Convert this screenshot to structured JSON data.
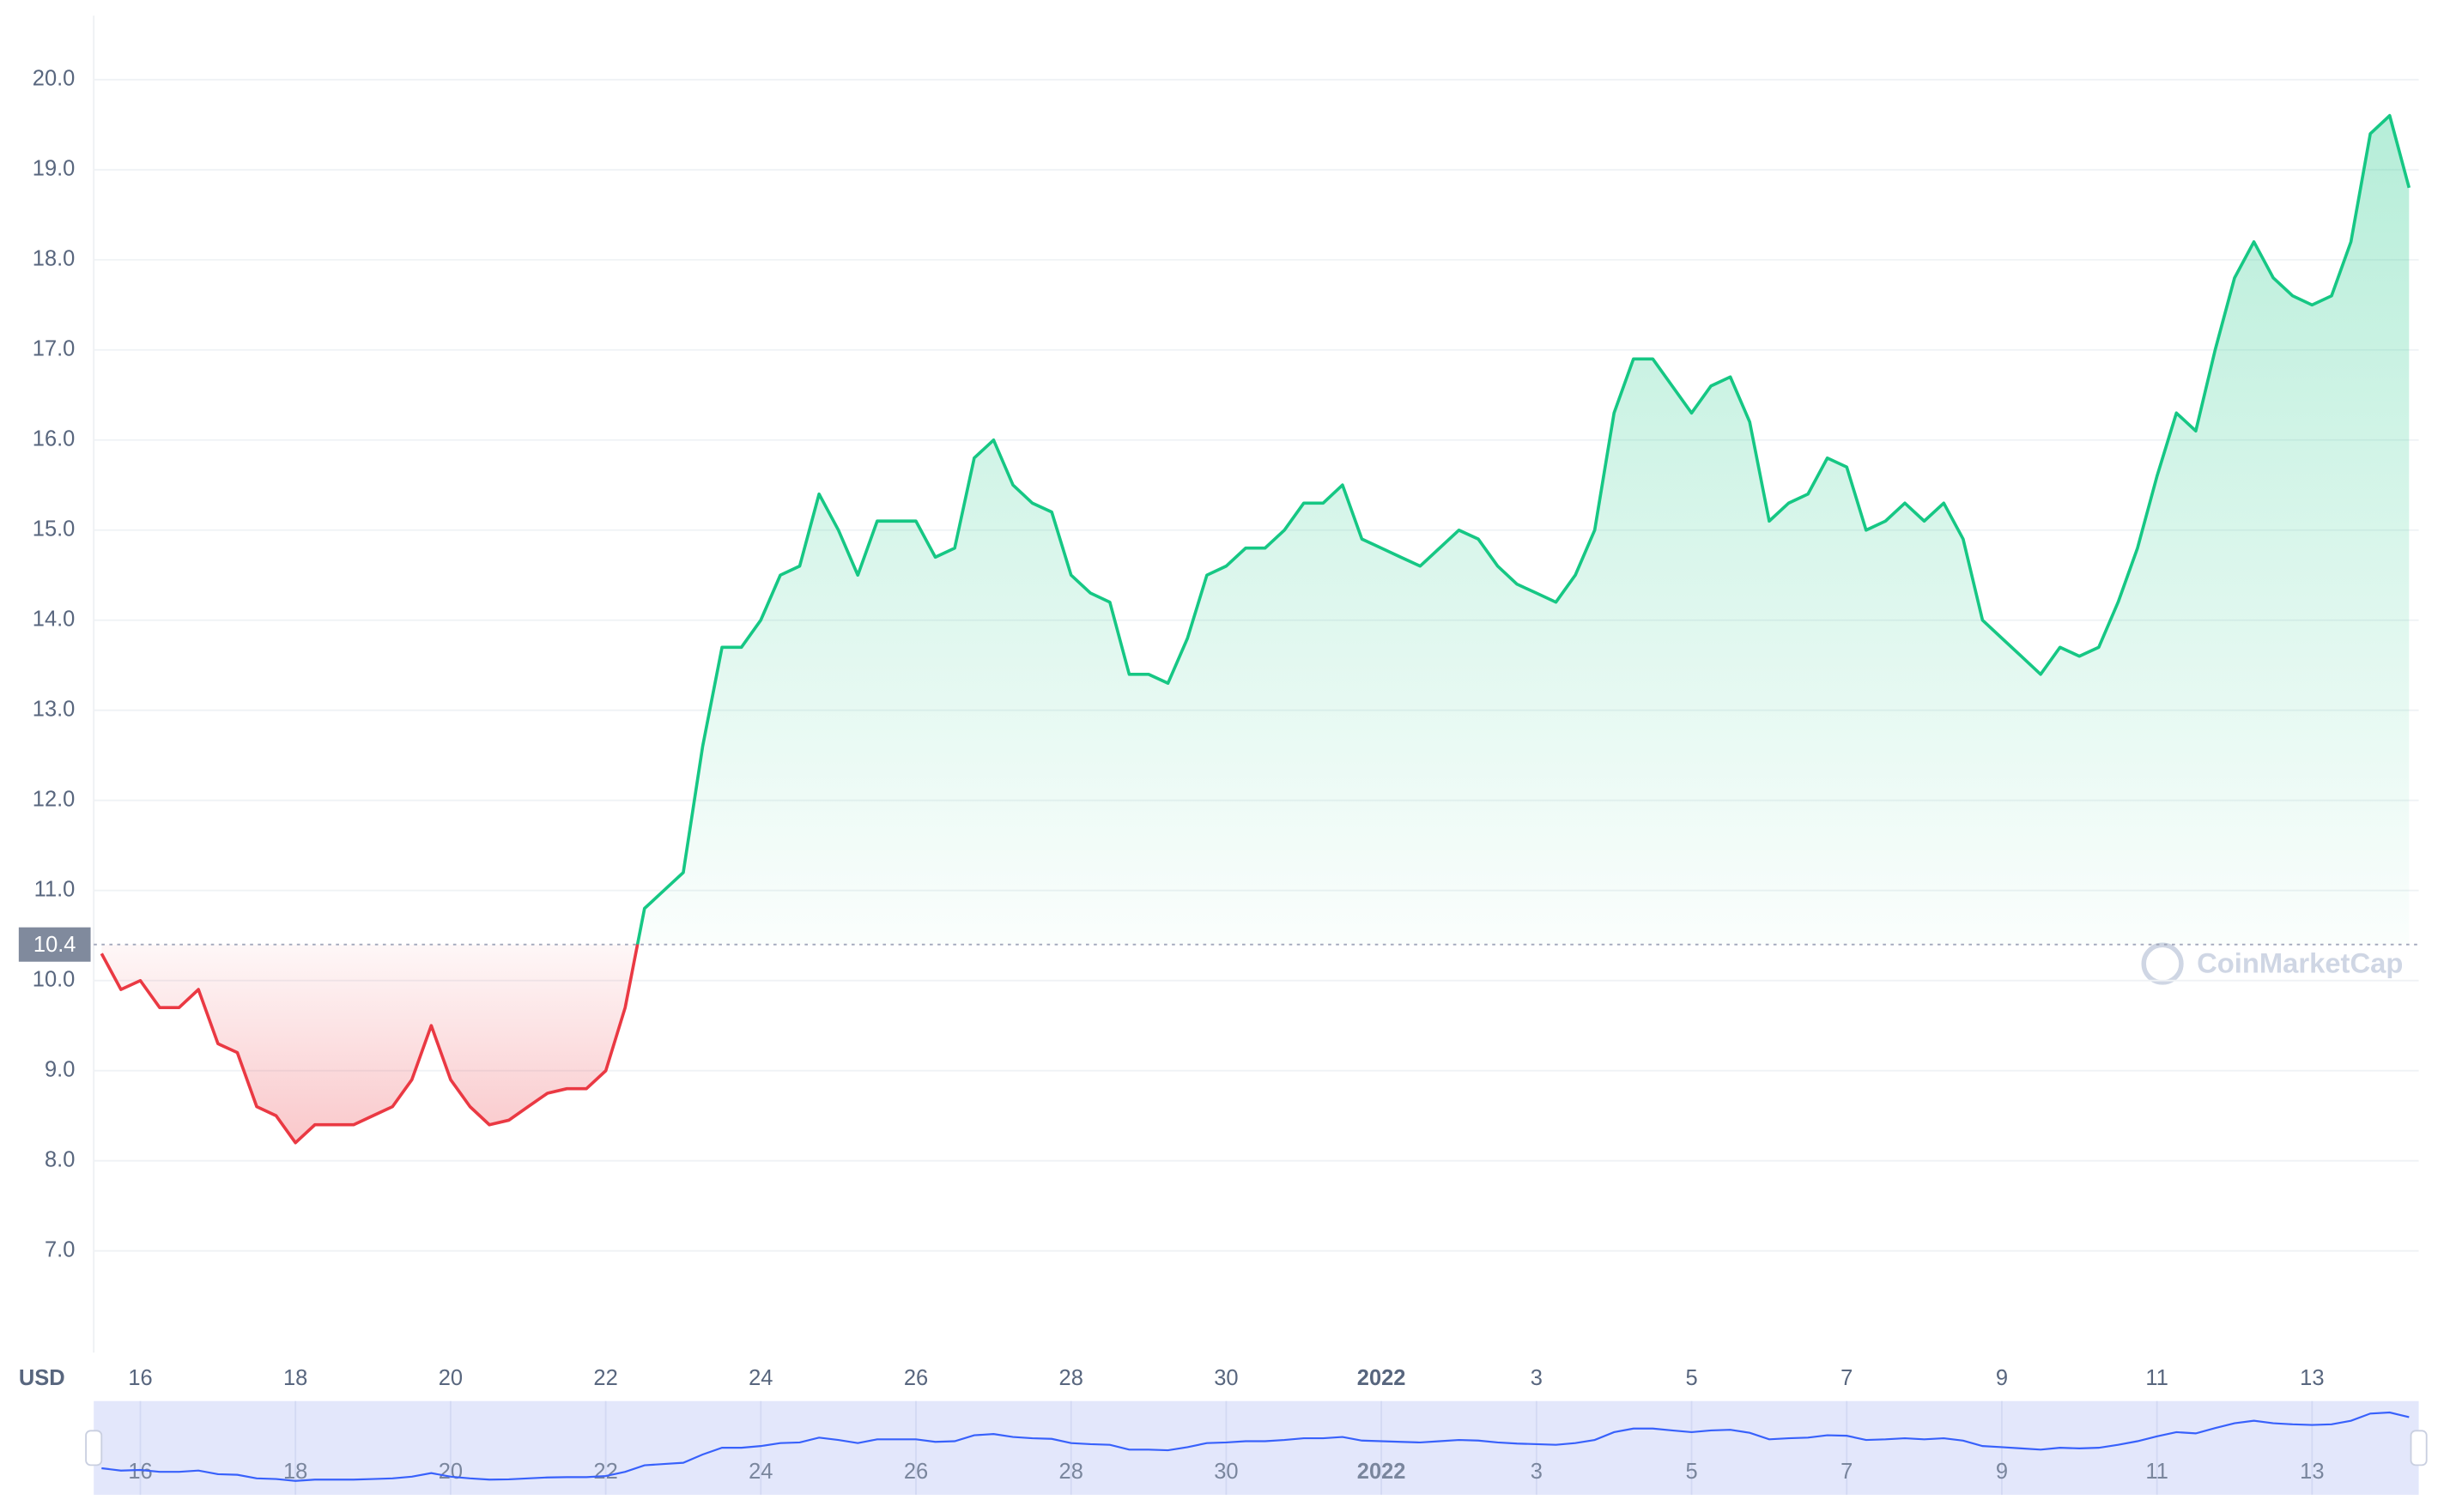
{
  "chart_data": {
    "type": "line",
    "currency_label": "USD",
    "watermark": "CoinMarketCap",
    "reference": 10.4,
    "up_color": "#16c784",
    "down_color": "#ea3943",
    "grid": true,
    "ylim": [
      5.87,
      20.71
    ],
    "yticks": [
      {
        "value": 7,
        "label": "7.0"
      },
      {
        "value": 8,
        "label": "8.0"
      },
      {
        "value": 9,
        "label": "9.0"
      },
      {
        "value": 10,
        "label": "10.0"
      },
      {
        "value": 11,
        "label": "11.0"
      },
      {
        "value": 12,
        "label": "12.0"
      },
      {
        "value": 13,
        "label": "13.0"
      },
      {
        "value": 14,
        "label": "14.0"
      },
      {
        "value": 15,
        "label": "15.0"
      },
      {
        "value": 16,
        "label": "16.0"
      },
      {
        "value": 17,
        "label": "17.0"
      },
      {
        "value": 18,
        "label": "18.0"
      },
      {
        "value": 19,
        "label": "19.0"
      },
      {
        "value": 20,
        "label": "20.0"
      }
    ],
    "categories": [
      null,
      null,
      "16",
      null,
      null,
      null,
      null,
      null,
      null,
      null,
      "18",
      null,
      null,
      null,
      null,
      null,
      null,
      null,
      "20",
      null,
      null,
      null,
      null,
      null,
      null,
      null,
      "22",
      null,
      null,
      null,
      null,
      null,
      null,
      null,
      "24",
      null,
      null,
      null,
      null,
      null,
      null,
      null,
      "26",
      null,
      null,
      null,
      null,
      null,
      null,
      null,
      "28",
      null,
      null,
      null,
      null,
      null,
      null,
      null,
      "30",
      null,
      null,
      null,
      null,
      null,
      null,
      null,
      "2022",
      null,
      null,
      null,
      null,
      null,
      null,
      null,
      "3",
      null,
      null,
      null,
      null,
      null,
      null,
      null,
      "5",
      null,
      null,
      null,
      null,
      null,
      null,
      null,
      "7",
      null,
      null,
      null,
      null,
      null,
      null,
      null,
      "9",
      null,
      null,
      null,
      null,
      null,
      null,
      null,
      "11",
      null,
      null,
      null,
      null,
      null,
      null,
      null,
      "13",
      null,
      null,
      null,
      null,
      null
    ],
    "values": [
      10.3,
      9.9,
      10.0,
      9.7,
      9.7,
      9.9,
      9.3,
      9.2,
      8.6,
      8.5,
      8.2,
      8.4,
      8.4,
      8.4,
      8.5,
      8.6,
      8.9,
      9.5,
      8.9,
      8.6,
      8.4,
      8.45,
      8.6,
      8.75,
      8.8,
      8.8,
      9.0,
      9.7,
      10.8,
      11.0,
      11.2,
      12.6,
      13.7,
      13.7,
      14.0,
      14.5,
      14.6,
      15.4,
      15.0,
      14.5,
      15.1,
      15.1,
      15.1,
      14.7,
      14.8,
      15.8,
      16.0,
      15.5,
      15.3,
      15.2,
      14.5,
      14.3,
      14.2,
      13.4,
      13.4,
      13.3,
      13.8,
      14.5,
      14.6,
      14.8,
      14.8,
      15.0,
      15.3,
      15.3,
      15.5,
      14.9,
      14.8,
      14.7,
      14.6,
      14.8,
      15.0,
      14.9,
      14.6,
      14.4,
      14.3,
      14.2,
      14.5,
      15.0,
      16.3,
      16.9,
      16.9,
      16.6,
      16.3,
      16.6,
      16.7,
      16.2,
      15.1,
      15.3,
      15.4,
      15.8,
      15.7,
      15.0,
      15.1,
      15.3,
      15.1,
      15.3,
      14.9,
      14.0,
      13.8,
      13.6,
      13.4,
      13.7,
      13.6,
      13.7,
      14.2,
      14.8,
      15.6,
      16.3,
      16.1,
      17.0,
      17.8,
      18.2,
      17.8,
      17.6,
      17.5,
      17.6,
      18.2,
      19.4,
      19.6,
      18.8
    ]
  }
}
